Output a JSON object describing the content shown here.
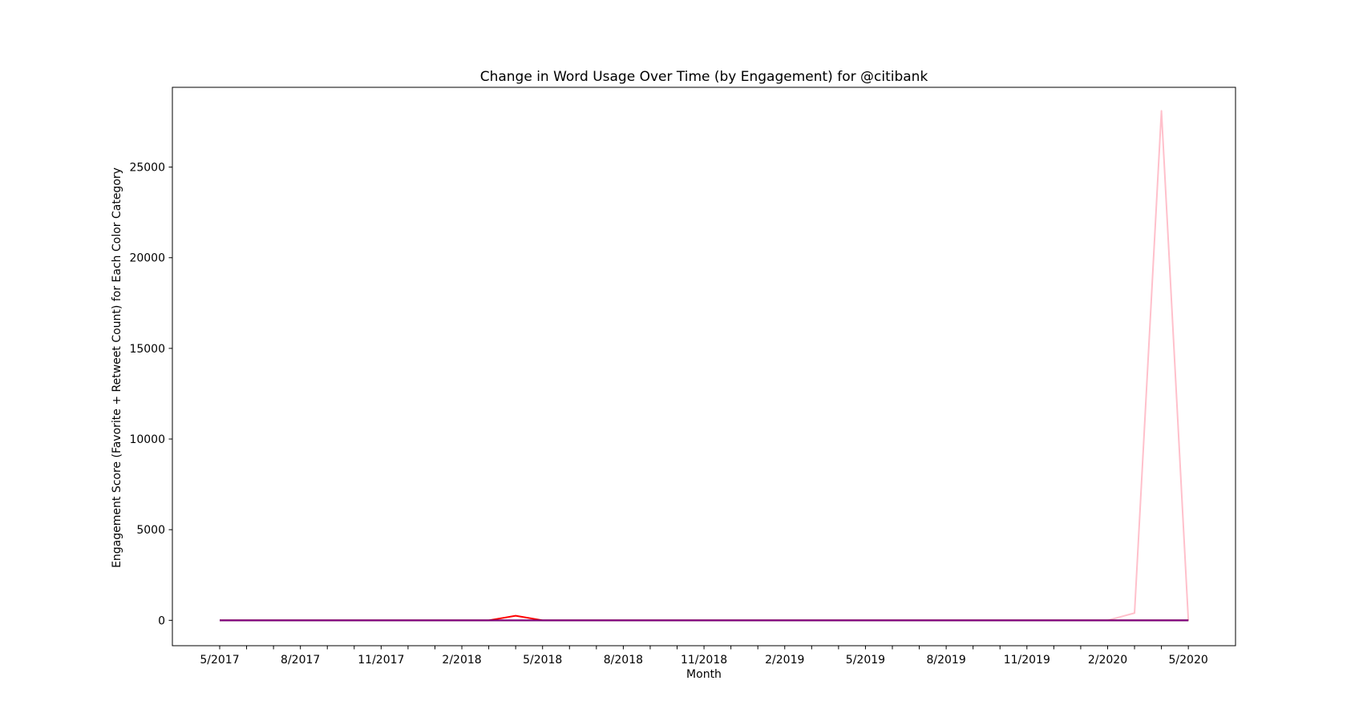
{
  "chart_data": {
    "type": "line",
    "title": "Change in Word Usage Over Time (by Engagement) for @citibank",
    "xlabel": "Month",
    "ylabel": "Engagement Score (Favorite + Retweet Count) for Each Color Category",
    "x": [
      "5/2017",
      "6/2017",
      "7/2017",
      "8/2017",
      "9/2017",
      "10/2017",
      "11/2017",
      "12/2017",
      "1/2018",
      "2/2018",
      "3/2018",
      "4/2018",
      "5/2018",
      "6/2018",
      "7/2018",
      "8/2018",
      "9/2018",
      "10/2018",
      "11/2018",
      "12/2018",
      "1/2019",
      "2/2019",
      "3/2019",
      "4/2019",
      "5/2019",
      "6/2019",
      "7/2019",
      "8/2019",
      "9/2019",
      "10/2019",
      "11/2019",
      "12/2019",
      "1/2020",
      "2/2020",
      "3/2020",
      "4/2020",
      "5/2020"
    ],
    "x_tick_labels": [
      "5/2017",
      "8/2017",
      "11/2017",
      "2/2018",
      "5/2018",
      "8/2018",
      "11/2018",
      "2/2019",
      "5/2019",
      "8/2019",
      "11/2019",
      "2/2020",
      "5/2020"
    ],
    "ylim": [
      -1400,
      29400
    ],
    "y_ticks": [
      0,
      5000,
      10000,
      15000,
      20000,
      25000
    ],
    "grid": false,
    "series": [
      {
        "color": "#ffc0cb",
        "values": [
          0,
          0,
          0,
          0,
          0,
          0,
          0,
          0,
          0,
          0,
          0,
          0,
          0,
          0,
          0,
          0,
          0,
          0,
          0,
          0,
          0,
          0,
          0,
          0,
          0,
          0,
          0,
          0,
          0,
          0,
          0,
          0,
          0,
          0,
          400,
          28100,
          0
        ]
      },
      {
        "color": "#ff0000",
        "values": [
          0,
          0,
          0,
          0,
          0,
          0,
          0,
          0,
          0,
          0,
          0,
          250,
          0,
          0,
          0,
          0,
          0,
          0,
          0,
          0,
          0,
          0,
          0,
          0,
          0,
          0,
          0,
          0,
          0,
          0,
          0,
          0,
          0,
          0,
          0,
          0,
          0
        ]
      },
      {
        "color": "#000000",
        "values": [
          0,
          0,
          0,
          0,
          0,
          0,
          0,
          0,
          0,
          0,
          0,
          0,
          0,
          0,
          0,
          0,
          0,
          0,
          0,
          0,
          0,
          0,
          0,
          0,
          0,
          0,
          0,
          0,
          0,
          0,
          0,
          0,
          0,
          0,
          0,
          0,
          0
        ]
      },
      {
        "color": "#800080",
        "values": [
          0,
          0,
          0,
          0,
          0,
          0,
          0,
          0,
          0,
          0,
          0,
          0,
          0,
          0,
          0,
          0,
          0,
          0,
          0,
          0,
          0,
          0,
          0,
          0,
          0,
          0,
          0,
          0,
          0,
          0,
          0,
          0,
          0,
          0,
          0,
          0,
          0
        ]
      }
    ]
  }
}
